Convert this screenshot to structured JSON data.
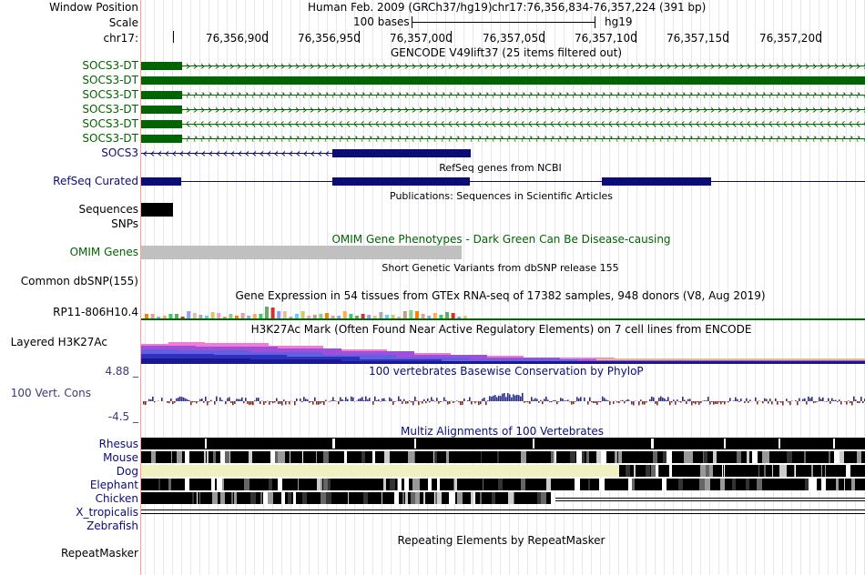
{
  "header": {
    "window_position_label": "Window Position",
    "assembly": "Human Feb. 2009 (GRCh37/hg19)",
    "position": "chr17:76,356,834-76,357,224 (391 bp)",
    "scale_label": "Scale",
    "scale_text": "100 bases",
    "scale_db": "hg19",
    "chrom_label": "chr17:",
    "ticks": [
      "76,356,900",
      "76,356,950",
      "76,357,000",
      "76,357,050",
      "76,357,100",
      "76,357,150",
      "76,357,200"
    ]
  },
  "tracks": {
    "gencode": {
      "title": "GENCODE V49lift37 (25 items filtered out)",
      "items": [
        "SOCS3-DT",
        "SOCS3-DT",
        "SOCS3-DT",
        "SOCS3-DT",
        "SOCS3-DT",
        "SOCS3-DT",
        "SOCS3"
      ]
    },
    "refseq": {
      "title": "RefSeq genes from NCBI",
      "label": "RefSeq Curated"
    },
    "publications": {
      "title": "Publications: Sequences in Scientific Articles",
      "label": "Sequences",
      "label2": "SNPs"
    },
    "omim": {
      "title": "OMIM Gene Phenotypes - Dark Green Can Be Disease-causing",
      "label": "OMIM Genes"
    },
    "dbsnp": {
      "title": "Short Genetic Variants from dbSNP release 155",
      "label": "Common dbSNP(155)"
    },
    "gtex": {
      "title": "Gene Expression in 54 tissues from GTEx RNA-seq of 17382 samples, 948 donors (V8, Aug 2019)",
      "label": "RP11-806H10.4"
    },
    "h3k27ac": {
      "title": "H3K27Ac Mark (Often Found Near Active Regulatory Elements) on 7 cell lines from ENCODE",
      "label": "Layered H3K27Ac"
    },
    "phylop": {
      "title": "100 vertebrates Basewise Conservation by PhyloP",
      "label": "100 Vert. Cons",
      "max": "4.88 _",
      "min": "-4.5 _"
    },
    "multiz": {
      "title": "Multiz Alignments of 100 Vertebrates",
      "species": [
        "Rhesus",
        "Mouse",
        "Dog",
        "Elephant",
        "Chicken",
        "X_tropicalis",
        "Zebrafish"
      ]
    },
    "repeatmasker": {
      "title": "Repeating Elements by RepeatMasker",
      "label": "RepeatMasker"
    }
  },
  "colors": {
    "gencode": "#006400",
    "refseq": "#0c0c78",
    "omim": "#c0c0c0",
    "phylop_pos": "#2b2b8c",
    "phylop_neg": "#8b2323",
    "dog": "#f0f0c0"
  }
}
